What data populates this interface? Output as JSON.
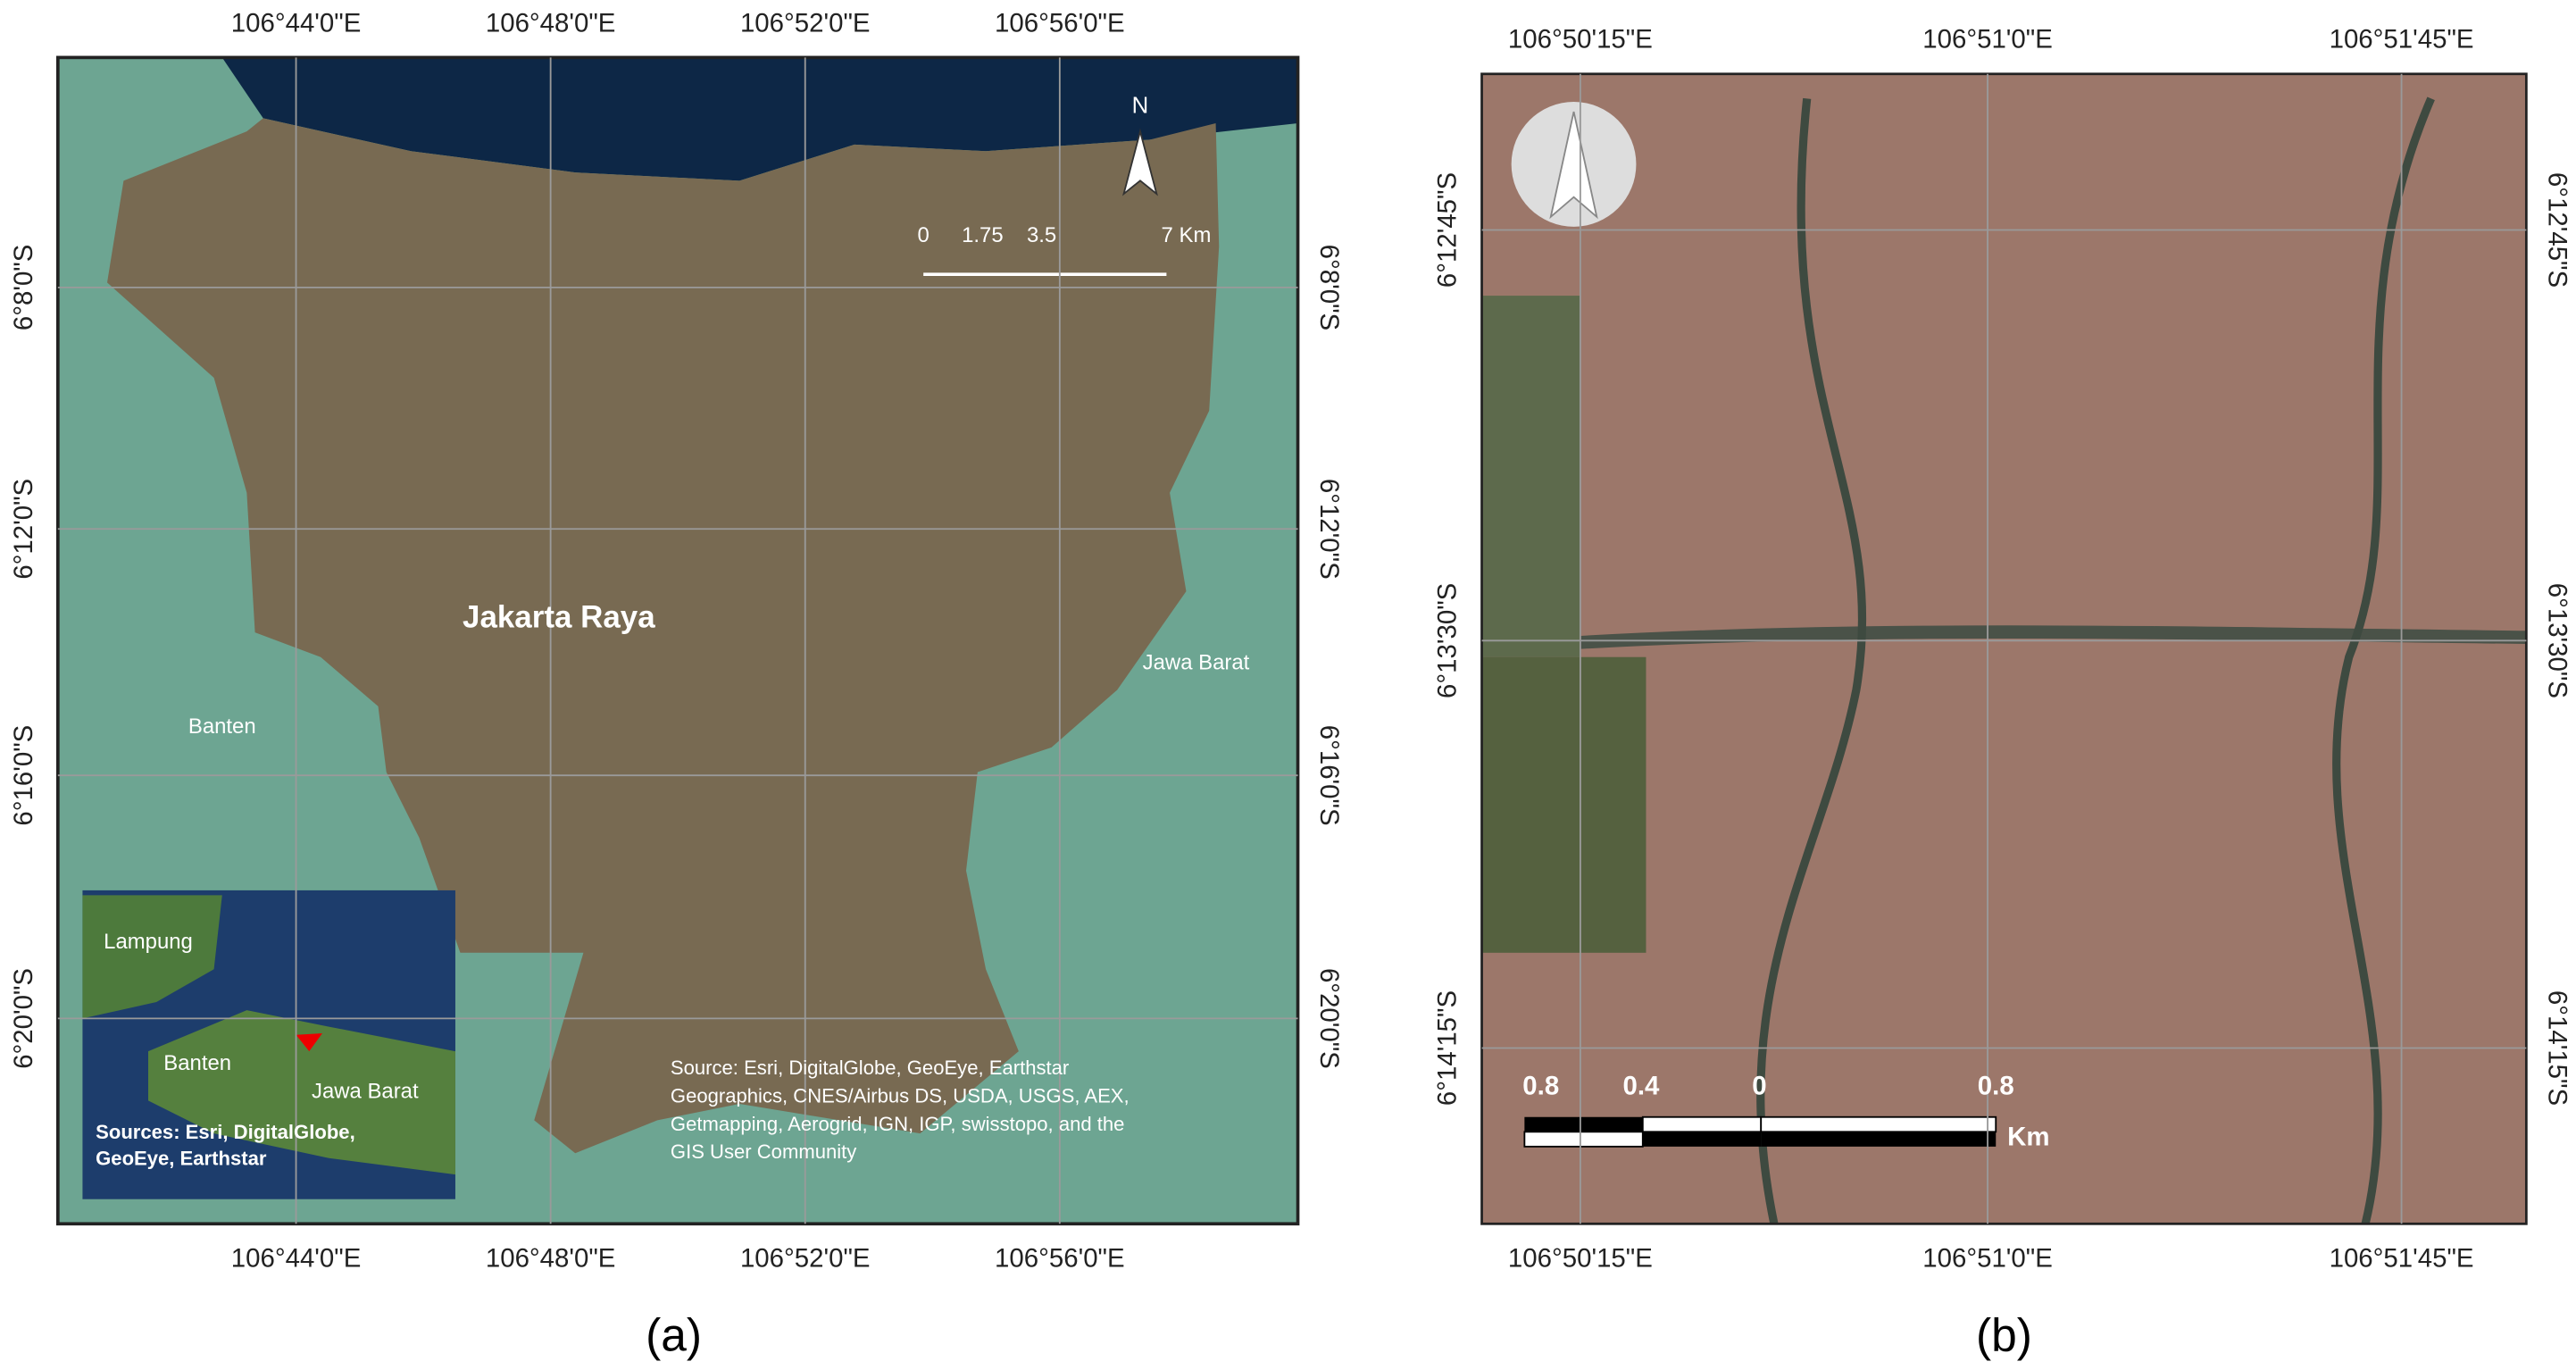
{
  "panel_a": {
    "top_labels": [
      "106°44'0\"E",
      "106°48'0\"E",
      "106°52'0\"E",
      "106°56'0\"E"
    ],
    "bottom_labels": [
      "106°44'0\"E",
      "106°48'0\"E",
      "106°52'0\"E",
      "106°56'0\"E"
    ],
    "left_labels": [
      "6°8'0\"S",
      "6°12'0\"S",
      "6°16'0\"S",
      "6°20'0\"S"
    ],
    "right_labels": [
      "6°8'0\"S",
      "6°12'0\"S",
      "6°16'0\"S",
      "6°20'0\"S"
    ],
    "map_labels": {
      "jakarta": "Jakarta Raya",
      "banten": "Banten",
      "jawa_barat": "Jawa Barat"
    },
    "north": "N",
    "scale_labels": [
      "0",
      "1.75",
      "3.5",
      "7 Km"
    ],
    "inset": {
      "labels": [
        "Lampung",
        "Banten",
        "Jawa Barat"
      ],
      "source": [
        "Sources: Esri, DigitalGlobe,",
        "GeoEye, Earthstar"
      ]
    },
    "source_text": [
      "Source: Esri, DigitalGlobe, GeoEye, Earthstar",
      "Geographics, CNES/Airbus DS, USDA, USGS, AEX,",
      "Getmapping, Aerogrid, IGN, IGP, swisstopo, and the",
      "GIS User Community"
    ],
    "caption": "(a)"
  },
  "panel_b": {
    "top_labels": [
      "106°50'15\"E",
      "106°51'0\"E",
      "106°51'45\"E"
    ],
    "bottom_labels": [
      "106°50'15\"E",
      "106°51'0\"E",
      "106°51'45\"E"
    ],
    "left_labels": [
      "6°12'45\"S",
      "6°13'30\"S",
      "6°14'15\"S"
    ],
    "right_labels": [
      "6°12'45\"S",
      "6°13'30\"S",
      "6°14'15\"S"
    ],
    "scale_labels": [
      "0.8",
      "0.4",
      "0",
      "0.8",
      "Km"
    ],
    "caption": "(b)"
  }
}
